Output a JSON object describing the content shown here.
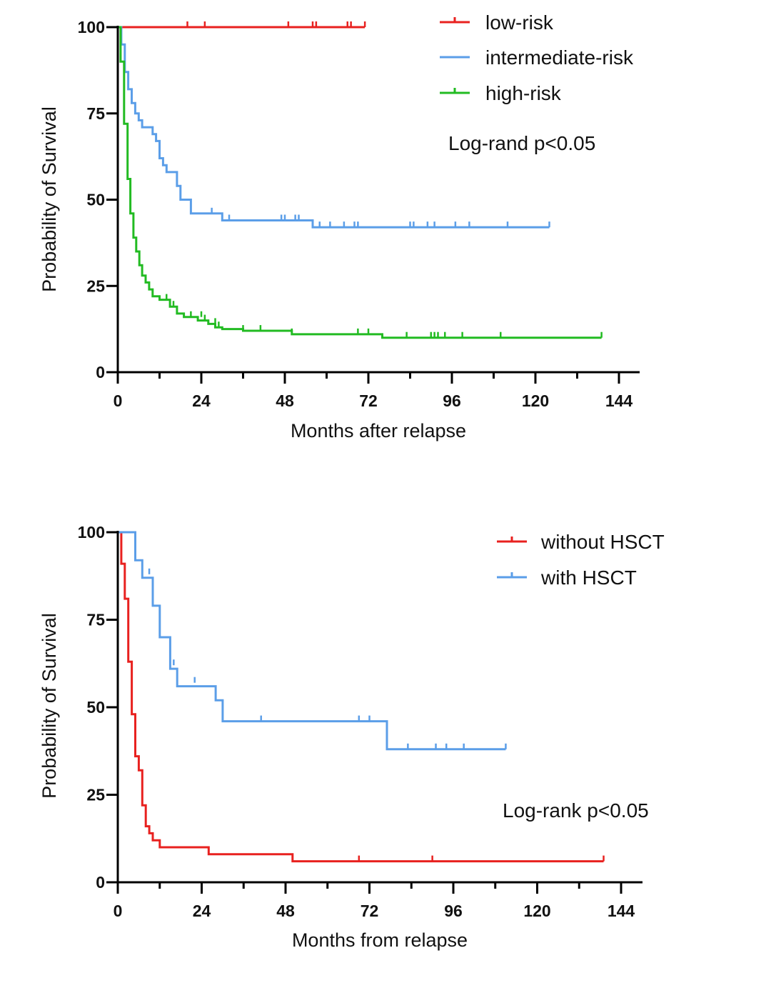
{
  "chart_data": [
    {
      "type": "line",
      "subtype": "kaplan-meier",
      "title": "",
      "xlabel": "Months after relapse",
      "ylabel": "Probability of Survival",
      "xlim": [
        0,
        144
      ],
      "ylim": [
        0,
        100
      ],
      "x_ticks": [
        0,
        24,
        48,
        72,
        96,
        120,
        144
      ],
      "y_ticks": [
        0,
        25,
        50,
        75,
        100
      ],
      "legend_position": "top-right",
      "annotation": "Log-rand p<0.05",
      "series": [
        {
          "name": "low-risk",
          "color": "#e8211f",
          "steps": [
            [
              0,
              100
            ],
            [
              71,
              100
            ]
          ],
          "censors": [
            [
              20,
              100
            ],
            [
              25,
              100
            ],
            [
              49,
              100
            ],
            [
              56,
              100
            ],
            [
              57,
              100
            ],
            [
              66,
              100
            ],
            [
              67,
              100
            ],
            [
              71,
              100
            ]
          ]
        },
        {
          "name": "intermediate-risk",
          "color": "#5b9ee8",
          "steps": [
            [
              0,
              100
            ],
            [
              1,
              95
            ],
            [
              2,
              87
            ],
            [
              3,
              82
            ],
            [
              4,
              78
            ],
            [
              5,
              75
            ],
            [
              6,
              73
            ],
            [
              7,
              71
            ],
            [
              10,
              69
            ],
            [
              11,
              67
            ],
            [
              12,
              62
            ],
            [
              13,
              60
            ],
            [
              14,
              58
            ],
            [
              17,
              54
            ],
            [
              18,
              50
            ],
            [
              21,
              46
            ],
            [
              30,
              44
            ],
            [
              56,
              42
            ],
            [
              124,
              42
            ]
          ],
          "censors": [
            [
              27,
              46
            ],
            [
              32,
              44
            ],
            [
              47,
              44
            ],
            [
              48,
              44
            ],
            [
              51,
              44
            ],
            [
              52,
              44
            ],
            [
              58,
              42
            ],
            [
              61,
              42
            ],
            [
              65,
              42
            ],
            [
              68,
              42
            ],
            [
              69,
              42
            ],
            [
              84,
              42
            ],
            [
              85,
              42
            ],
            [
              89,
              42
            ],
            [
              91,
              42
            ],
            [
              97,
              42
            ],
            [
              101,
              42
            ],
            [
              112,
              42
            ],
            [
              124,
              42
            ]
          ]
        },
        {
          "name": "high-risk",
          "color": "#22bb22",
          "steps": [
            [
              0,
              100
            ],
            [
              0.8,
              90
            ],
            [
              1.8,
              72
            ],
            [
              2.8,
              56
            ],
            [
              3.6,
              46
            ],
            [
              4.5,
              39
            ],
            [
              5.3,
              35
            ],
            [
              6.2,
              31
            ],
            [
              7,
              28
            ],
            [
              8,
              26
            ],
            [
              9,
              24
            ],
            [
              10,
              22
            ],
            [
              12,
              21
            ],
            [
              15,
              19
            ],
            [
              17,
              17
            ],
            [
              19,
              16
            ],
            [
              23,
              15
            ],
            [
              26,
              14
            ],
            [
              28,
              13
            ],
            [
              30,
              12.5
            ],
            [
              36,
              12
            ],
            [
              50,
              11
            ],
            [
              76,
              10
            ],
            [
              139,
              10
            ]
          ],
          "censors": [
            [
              14,
              21
            ],
            [
              16,
              19
            ],
            [
              21,
              16
            ],
            [
              24,
              16
            ],
            [
              25,
              15
            ],
            [
              28,
              14
            ],
            [
              29,
              13
            ],
            [
              36,
              12
            ],
            [
              41,
              12
            ],
            [
              50,
              11
            ],
            [
              69,
              11
            ],
            [
              72,
              11
            ],
            [
              83,
              10
            ],
            [
              90,
              10
            ],
            [
              91,
              10
            ],
            [
              92,
              10
            ],
            [
              94,
              10
            ],
            [
              99,
              10
            ],
            [
              110,
              10
            ],
            [
              139,
              10
            ]
          ]
        }
      ]
    },
    {
      "type": "line",
      "subtype": "kaplan-meier",
      "title": "",
      "xlabel": "Months from relapse",
      "ylabel": "Probability of Survival",
      "xlim": [
        0,
        144
      ],
      "ylim": [
        0,
        100
      ],
      "x_ticks": [
        0,
        24,
        48,
        72,
        96,
        120,
        144
      ],
      "y_ticks": [
        0,
        25,
        50,
        75,
        100
      ],
      "legend_position": "top-right",
      "annotation": "Log-rank p<0.05",
      "series": [
        {
          "name": "without HSCT",
          "color": "#e8211f",
          "steps": [
            [
              0,
              100
            ],
            [
              1,
              91
            ],
            [
              2,
              81
            ],
            [
              3,
              63
            ],
            [
              4,
              48
            ],
            [
              5,
              36
            ],
            [
              6,
              32
            ],
            [
              7,
              22
            ],
            [
              8,
              16
            ],
            [
              9,
              14
            ],
            [
              10,
              12
            ],
            [
              12,
              10
            ],
            [
              26,
              8
            ],
            [
              50,
              6
            ],
            [
              139,
              6
            ]
          ],
          "censors": [
            [
              69,
              6
            ],
            [
              90,
              6
            ],
            [
              139,
              6
            ]
          ]
        },
        {
          "name": "with HSCT",
          "color": "#5b9ee8",
          "steps": [
            [
              0,
              100
            ],
            [
              5,
              92
            ],
            [
              7,
              87
            ],
            [
              10,
              79
            ],
            [
              12,
              70
            ],
            [
              15,
              61
            ],
            [
              17,
              56
            ],
            [
              28,
              52
            ],
            [
              30,
              46
            ],
            [
              77,
              38
            ],
            [
              111,
              38
            ]
          ],
          "censors": [
            [
              9,
              88
            ],
            [
              16,
              62
            ],
            [
              22,
              57
            ],
            [
              41,
              46
            ],
            [
              69,
              46
            ],
            [
              72,
              46
            ],
            [
              83,
              38
            ],
            [
              91,
              38
            ],
            [
              94,
              38
            ],
            [
              99,
              38
            ],
            [
              111,
              38
            ]
          ]
        }
      ]
    }
  ]
}
